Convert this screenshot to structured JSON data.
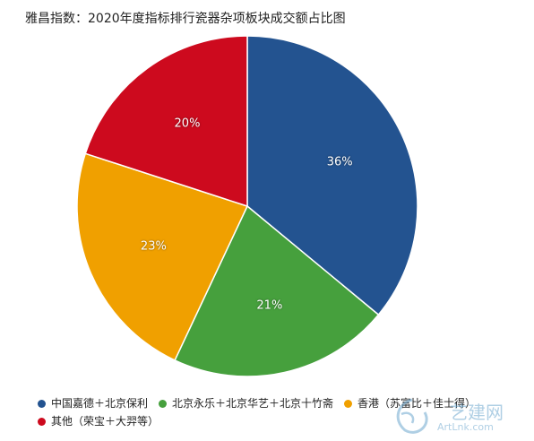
{
  "chart_data": {
    "type": "pie",
    "title": "雅昌指数：2020年度指标排行瓷器杂项板块成交额占比图",
    "slices": [
      {
        "label": "中国嘉德＋北京保利",
        "value": 36,
        "display": "36%",
        "color": "#235390"
      },
      {
        "label": "北京永乐＋北京华艺＋北京十竹斋",
        "value": 21,
        "display": "21%",
        "color": "#46a03d"
      },
      {
        "label": "香港（苏富比＋佳士得）",
        "value": 23,
        "display": "23%",
        "color": "#f0a000"
      },
      {
        "label": "其他（荣宝＋大羿等）",
        "value": 20,
        "display": "20%",
        "color": "#cd0a1e"
      }
    ],
    "legend_position": "bottom"
  },
  "watermark": {
    "text": "艺建网",
    "url": "ArtLnk.com"
  }
}
